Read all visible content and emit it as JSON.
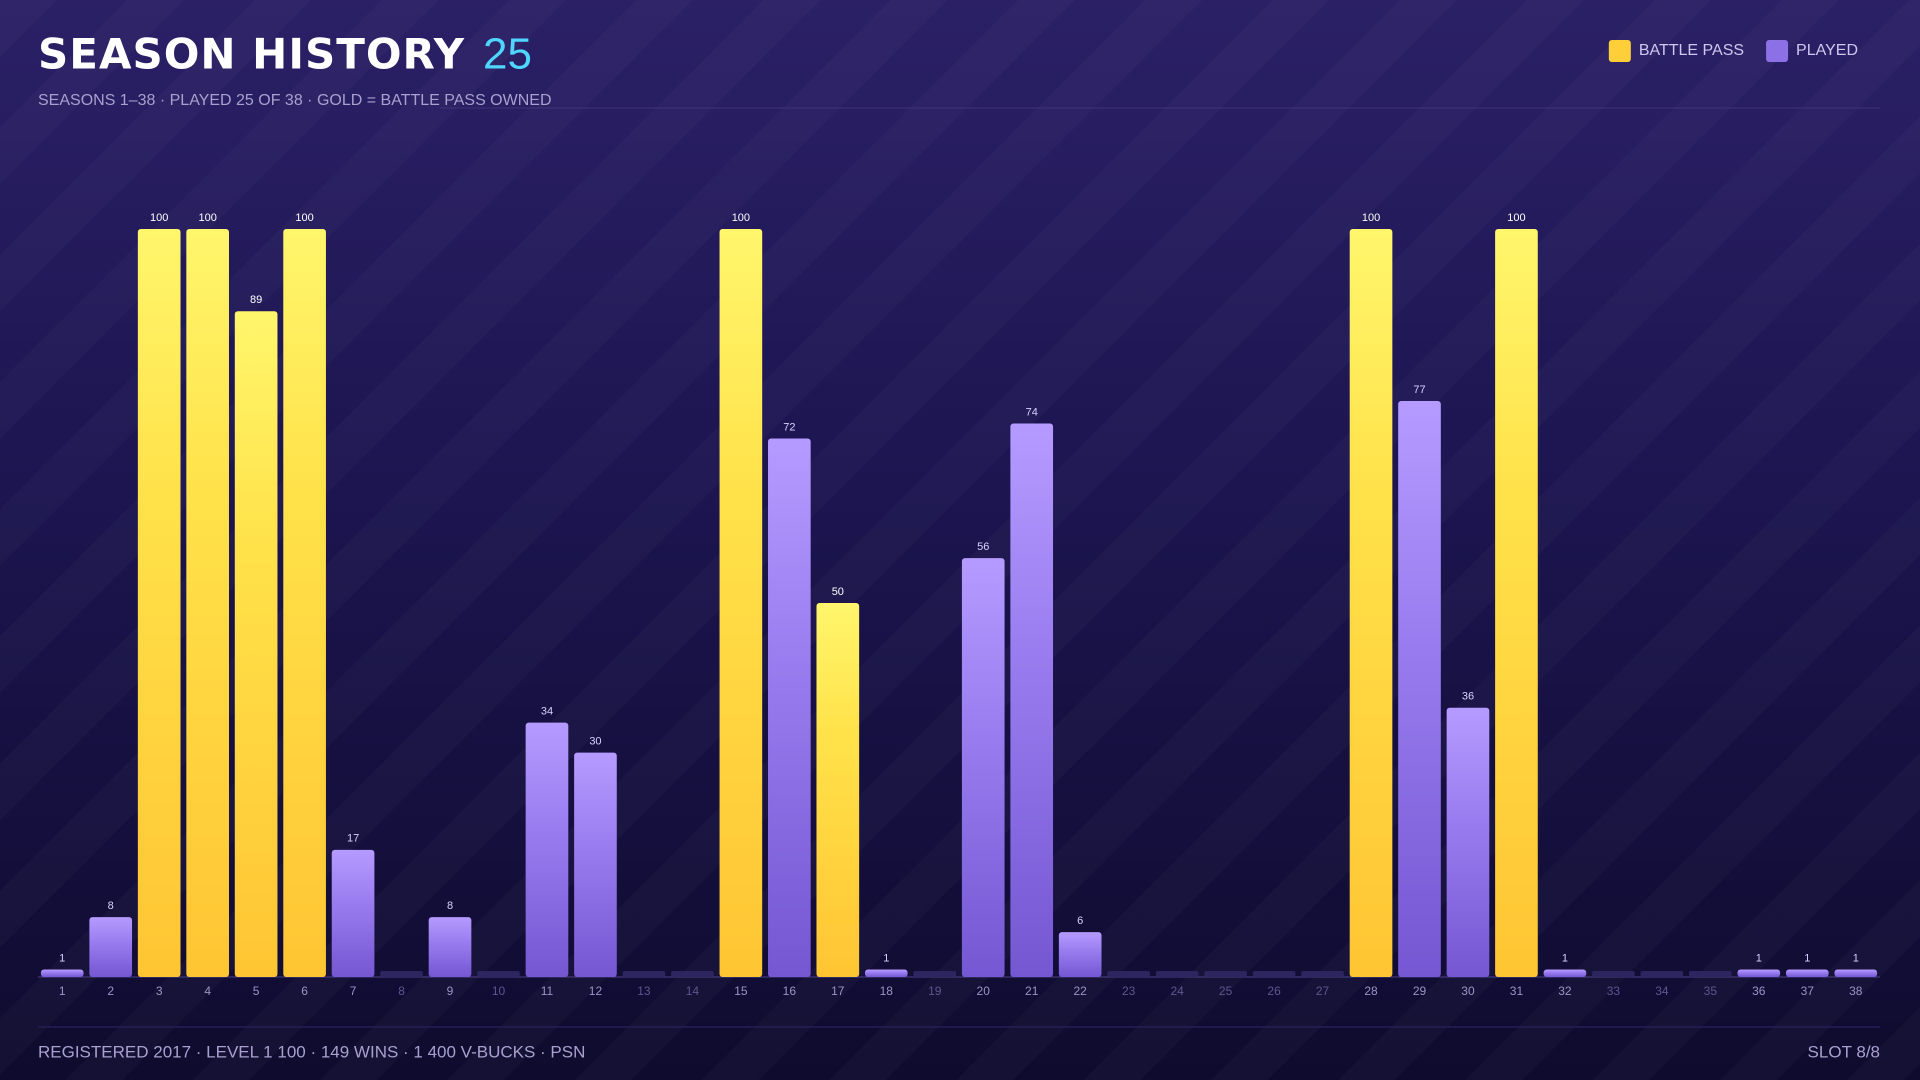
{
  "chart_data": {
    "type": "bar",
    "title": "SEASON HISTORY",
    "title_count": "25",
    "subtitle": "SEASONS 1–38 · PLAYED 25 OF 38 · GOLD = BATTLE PASS OWNED",
    "legend": [
      {
        "label": "BATTLE PASS",
        "color": "#ffcf3a"
      },
      {
        "label": "PLAYED",
        "color": "#8c70e6"
      }
    ],
    "categories": [
      "1",
      "2",
      "3",
      "4",
      "5",
      "6",
      "7",
      "8",
      "9",
      "10",
      "11",
      "12",
      "13",
      "14",
      "15",
      "16",
      "17",
      "18",
      "19",
      "20",
      "21",
      "22",
      "23",
      "24",
      "25",
      "26",
      "27",
      "28",
      "29",
      "30",
      "31",
      "32",
      "33",
      "34",
      "35",
      "36",
      "37",
      "38"
    ],
    "values": [
      1,
      8,
      100,
      100,
      89,
      100,
      17,
      null,
      8,
      null,
      34,
      30,
      null,
      null,
      100,
      72,
      50,
      1,
      null,
      56,
      74,
      6,
      null,
      null,
      null,
      null,
      null,
      100,
      77,
      36,
      100,
      1,
      null,
      null,
      null,
      1,
      1,
      1
    ],
    "battle_pass": [
      false,
      false,
      true,
      true,
      true,
      true,
      false,
      false,
      false,
      false,
      false,
      false,
      false,
      false,
      true,
      false,
      true,
      false,
      false,
      false,
      false,
      false,
      false,
      false,
      false,
      false,
      false,
      true,
      false,
      false,
      true,
      false,
      false,
      false,
      false,
      false,
      false,
      false
    ],
    "ylim": [
      0,
      100
    ],
    "footer": "REGISTERED 2017 · LEVEL 1 100 · 149 WINS · 1 400 V-BUCKS · PSN",
    "slot": "SLOT 8/8"
  }
}
